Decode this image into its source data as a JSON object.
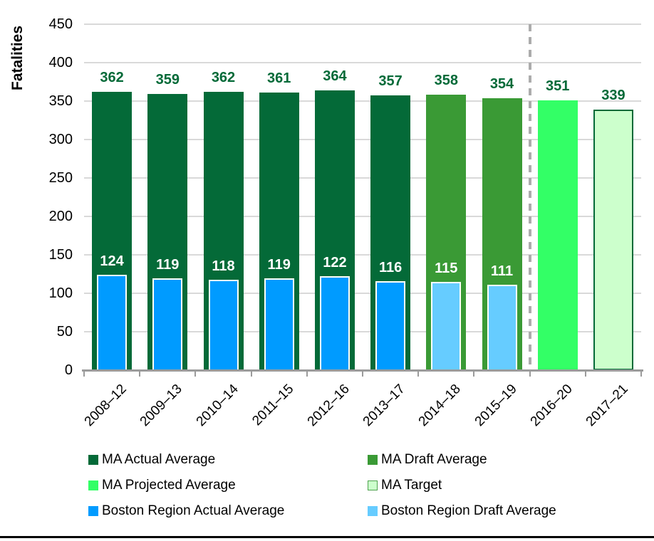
{
  "chart_data": {
    "type": "bar",
    "title": "",
    "xlabel": "",
    "ylabel": "Fatalities",
    "ylim": [
      0,
      450
    ],
    "yticks": [
      0,
      50,
      100,
      150,
      200,
      250,
      300,
      350,
      400,
      450
    ],
    "grid": true,
    "legend_position": "bottom",
    "categories": [
      "2008–12",
      "2009–13",
      "2010–14",
      "2011–15",
      "2012–16",
      "2013–17",
      "2014–18",
      "2015–19",
      "2016–20",
      "2017–21"
    ],
    "bars": [
      {
        "category": "2008–12",
        "ma_value": 362,
        "ma_series": "MA Actual Average",
        "boston_value": 124,
        "boston_series": "Boston Region Actual Average"
      },
      {
        "category": "2009–13",
        "ma_value": 359,
        "ma_series": "MA Actual Average",
        "boston_value": 119,
        "boston_series": "Boston Region Actual Average"
      },
      {
        "category": "2010–14",
        "ma_value": 362,
        "ma_series": "MA Actual Average",
        "boston_value": 118,
        "boston_series": "Boston Region Actual Average"
      },
      {
        "category": "2011–15",
        "ma_value": 361,
        "ma_series": "MA Actual Average",
        "boston_value": 119,
        "boston_series": "Boston Region Actual Average"
      },
      {
        "category": "2012–16",
        "ma_value": 364,
        "ma_series": "MA Actual Average",
        "boston_value": 122,
        "boston_series": "Boston Region Actual Average"
      },
      {
        "category": "2013–17",
        "ma_value": 357,
        "ma_series": "MA Actual Average",
        "boston_value": 116,
        "boston_series": "Boston Region Actual Average"
      },
      {
        "category": "2014–18",
        "ma_value": 358,
        "ma_series": "MA Draft Average",
        "boston_value": 115,
        "boston_series": "Boston Region Draft Average"
      },
      {
        "category": "2015–19",
        "ma_value": 354,
        "ma_series": "MA Draft Average",
        "boston_value": 111,
        "boston_series": "Boston Region Draft Average"
      },
      {
        "category": "2016–20",
        "ma_value": 351,
        "ma_series": "MA Projected Average",
        "boston_value": null,
        "boston_series": null
      },
      {
        "category": "2017–21",
        "ma_value": 339,
        "ma_series": "MA Target",
        "boston_value": null,
        "boston_series": null
      }
    ],
    "divider": {
      "style": "dashed",
      "after_category": "2015–19",
      "before_category": "2016–20"
    }
  },
  "colors": {
    "ma_actual": "#046A38",
    "ma_draft": "#3A9A35",
    "ma_projected": "#33FF66",
    "ma_target_fill": "#CCFFCC",
    "ma_target_border": "#046A38",
    "boston_actual": "#009BFF",
    "boston_draft": "#66CCFF",
    "value_label_green": "#046A38",
    "value_label_white": "#FFFFFF",
    "gridline": "#D9D9D9",
    "axis": "#9B9B9B",
    "divider": "#ACACAC",
    "footer_line": "#000000",
    "target_legend_border": "#4EA24E"
  },
  "legend": {
    "items": [
      {
        "label": "MA Actual Average",
        "color": "#046A38"
      },
      {
        "label": "MA Draft Average",
        "color": "#3A9A35"
      },
      {
        "label": "MA Projected Average",
        "color": "#33FF66"
      },
      {
        "label": "MA Target",
        "color": "#CCFFCC",
        "border": "#4EA24E"
      },
      {
        "label": "Boston Region Actual Average",
        "color": "#009BFF"
      },
      {
        "label": "Boston Region Draft Average",
        "color": "#66CCFF"
      }
    ]
  }
}
